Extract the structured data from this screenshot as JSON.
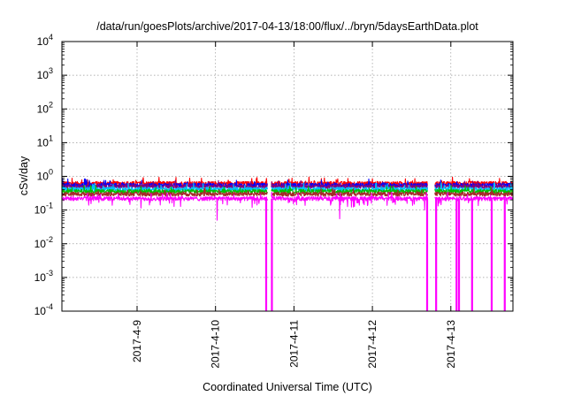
{
  "chart_data": {
    "type": "line",
    "title": "/data/run/goesPlots/archive/2017-04-13/18:00/flux/../bryn/5daysEarthData.plot",
    "xlabel": "Coordinated Universal Time (UTC)",
    "ylabel": "cSv/day",
    "yscale": "log",
    "ylim": [
      0.0001,
      10000
    ],
    "y_ticks": [
      {
        "base": "10",
        "exp": "4"
      },
      {
        "base": "10",
        "exp": "3"
      },
      {
        "base": "10",
        "exp": "2"
      },
      {
        "base": "10",
        "exp": "1"
      },
      {
        "base": "10",
        "exp": "0"
      },
      {
        "base": "10",
        "exp": "-1"
      },
      {
        "base": "10",
        "exp": "-2"
      },
      {
        "base": "10",
        "exp": "-3"
      },
      {
        "base": "10",
        "exp": "-4"
      }
    ],
    "xlim": [
      "2017-04-08 01:00",
      "2017-04-13 19:00"
    ],
    "x_ticks": [
      "2017-4-9",
      "2017-4-10",
      "2017-4-11",
      "2017-4-12",
      "2017-4-13"
    ],
    "grid": true,
    "legend": "none",
    "data_gaps_utc": [
      [
        "2017-04-10 16:00",
        "2017-04-10 17:00"
      ],
      [
        "2017-04-12 17:00",
        "2017-04-12 19:00"
      ]
    ],
    "series": [
      {
        "color": "#ff0000",
        "level": 0.62,
        "dropouts": []
      },
      {
        "color": "#0000ff",
        "level": 0.55,
        "dropouts": []
      },
      {
        "color": "#800080",
        "level": 0.5,
        "dropouts": []
      },
      {
        "color": "#00bfff",
        "level": 0.42,
        "dropouts": []
      },
      {
        "color": "#00c000",
        "level": 0.36,
        "dropouts": []
      },
      {
        "color": "#a52a2a",
        "level": 0.3,
        "dropouts": []
      },
      {
        "color": "#ff00ff",
        "level": 0.22,
        "dips": [
          {
            "time": "2017-04-10 00:30",
            "value": 0.05
          },
          {
            "time": "2017-04-11 14:00",
            "value": 0.055
          },
          {
            "time": "2017-04-12 16:00",
            "value": 0.1
          }
        ],
        "dropouts": [
          "2017-04-10 15:30",
          "2017-04-10 17:15",
          "2017-04-12 16:45",
          "2017-04-12 19:30",
          "2017-04-13 01:45",
          "2017-04-13 02:30",
          "2017-04-13 06:30",
          "2017-04-13 12:30",
          "2017-04-13 16:30"
        ]
      }
    ]
  }
}
